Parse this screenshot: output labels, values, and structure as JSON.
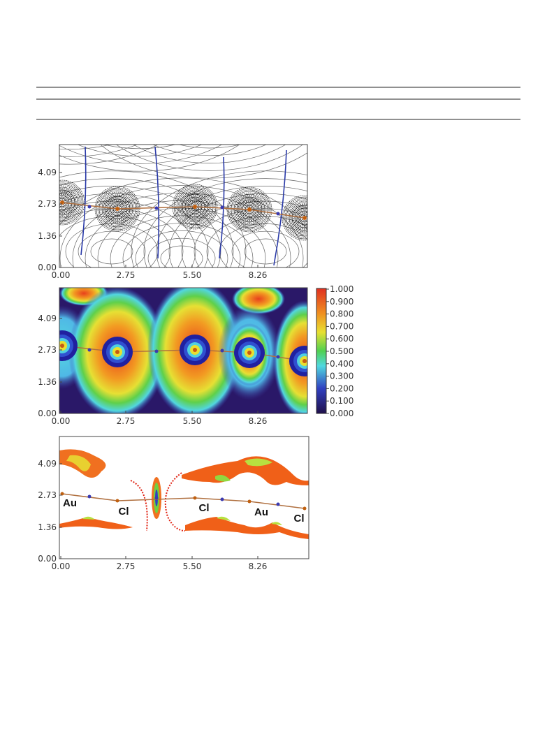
{
  "panels": [
    {
      "xticks": [
        "0.00",
        "2.75",
        "5.50",
        "8.26"
      ],
      "yticks": [
        "0.00",
        "1.36",
        "2.73",
        "4.09"
      ]
    },
    {
      "xticks": [
        "0.00",
        "2.75",
        "5.50",
        "8.26"
      ],
      "yticks": [
        "0.00",
        "1.36",
        "2.73",
        "4.09"
      ]
    },
    {
      "xticks": [
        "0.00",
        "2.75",
        "5.50",
        "8.26"
      ],
      "yticks": [
        "0.00",
        "1.36",
        "2.73",
        "4.09"
      ]
    }
  ],
  "colorbar": {
    "ticks": [
      "1.000",
      "0.900",
      "0.800",
      "0.700",
      "0.600",
      "0.500",
      "0.400",
      "0.300",
      "0.200",
      "0.100",
      "0.000"
    ]
  },
  "atom_labels": [
    "Au",
    "Cl",
    "Cl",
    "Au",
    "Cl"
  ]
}
